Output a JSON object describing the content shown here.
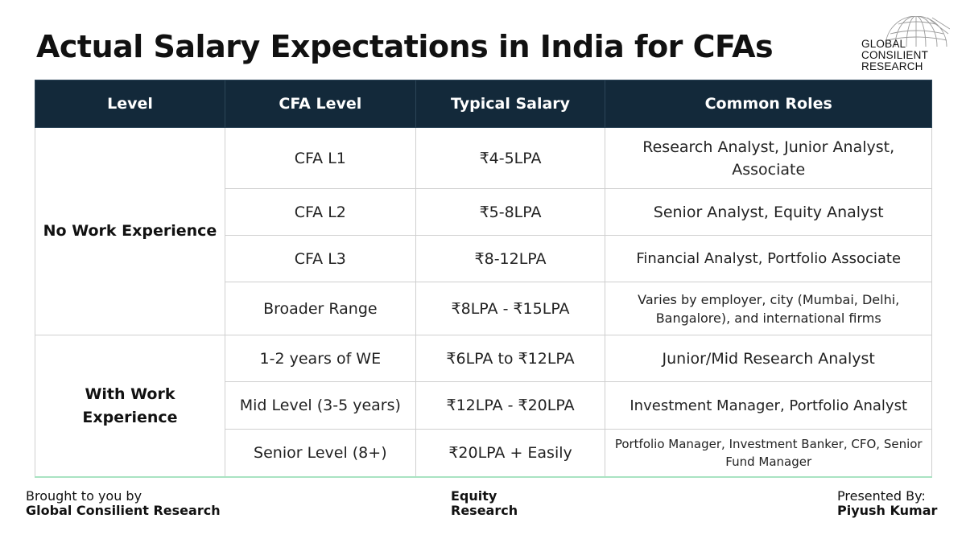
{
  "title": "Actual Salary Expectations in India for CFAs",
  "logo": {
    "line1": "GLOBAL",
    "line2": "CONSILIENT",
    "line3": "RESEARCH"
  },
  "table": {
    "headers": [
      "Level",
      "CFA Level",
      "Typical Salary",
      "Common Roles"
    ],
    "groups": [
      {
        "label": "No Work Experience",
        "rows": [
          {
            "cfa_level": "CFA L1",
            "salary": "₹4-5LPA",
            "roles": "Research Analyst, Junior Analyst, Associate"
          },
          {
            "cfa_level": "CFA L2",
            "salary": "₹5-8LPA",
            "roles": "Senior Analyst, Equity Analyst"
          },
          {
            "cfa_level": "CFA L3",
            "salary": "₹8-12LPA",
            "roles": "Financial Analyst, Portfolio Associate"
          },
          {
            "cfa_level": "Broader Range",
            "salary": "₹8LPA - ₹15LPA",
            "roles": "Varies by employer, city (Mumbai, Delhi, Bangalore), and international firms"
          }
        ]
      },
      {
        "label": "With Work Experience",
        "rows": [
          {
            "cfa_level": "1-2 years of WE",
            "salary": "₹6LPA to ₹12LPA",
            "roles": "Junior/Mid Research Analyst"
          },
          {
            "cfa_level": "Mid Level (3-5 years)",
            "salary": "₹12LPA - ₹20LPA",
            "roles": "Investment Manager, Portfolio Analyst"
          },
          {
            "cfa_level": "Senior Level (8+)",
            "salary": "₹20LPA + Easily",
            "roles": "Portfolio Manager, Investment Banker, CFO, Senior Fund Manager"
          }
        ]
      }
    ]
  },
  "footer": {
    "left": {
      "line1": "Brought to you by",
      "line2": "Global Consilient Research"
    },
    "middle": {
      "line1": "Equity",
      "line2": "Research"
    },
    "right": {
      "line1": "Presented By:",
      "line2": "Piyush Kumar"
    }
  },
  "colors": {
    "header_bg": "#13293a",
    "accent_line": "#a9e3c2"
  }
}
